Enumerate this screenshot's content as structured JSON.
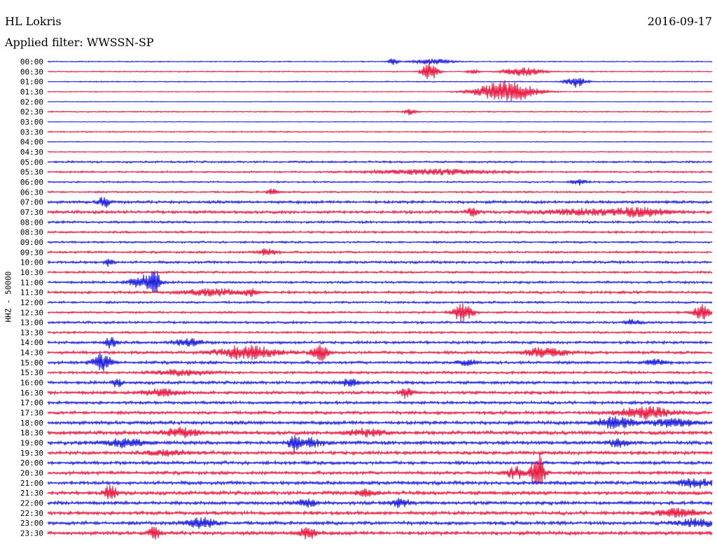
{
  "header": {
    "station": "HL Lokris",
    "date": "2016-09-17",
    "filter_label": "Applied filter: WWSSN-SP"
  },
  "chart_data": {
    "type": "line",
    "title": "HL Lokris",
    "subtitle": "Applied filter: WWSSN-SP",
    "ylabel": "HHZ - 50000",
    "xlabel": "",
    "grid": false,
    "legend": "none",
    "colors": {
      "even_hour": "#1a1adc",
      "odd_half_hour": "#e8163f"
    },
    "rows": [
      "00:00",
      "00:30",
      "01:00",
      "01:30",
      "02:00",
      "02:30",
      "03:00",
      "03:30",
      "04:00",
      "04:30",
      "05:00",
      "05:30",
      "06:00",
      "06:30",
      "07:00",
      "07:30",
      "08:00",
      "08:30",
      "09:00",
      "09:30",
      "10:00",
      "10:30",
      "11:00",
      "11:30",
      "12:00",
      "12:30",
      "13:00",
      "13:30",
      "14:00",
      "14:30",
      "15:00",
      "15:30",
      "16:00",
      "16:30",
      "17:00",
      "17:30",
      "18:00",
      "18:30",
      "19:00",
      "19:30",
      "20:00",
      "20:30",
      "21:00",
      "21:30",
      "22:00",
      "22:30",
      "23:00",
      "23:30"
    ],
    "noise_level": [
      0.6,
      0.6,
      0.6,
      0.5,
      0.4,
      0.7,
      0.4,
      0.7,
      0.5,
      0.6,
      1.1,
      1.0,
      0.9,
      1.0,
      1.6,
      1.6,
      1.3,
      1.2,
      1.1,
      1.2,
      1.4,
      1.2,
      1.3,
      1.4,
      1.2,
      1.2,
      1.3,
      1.2,
      1.5,
      1.6,
      1.6,
      1.4,
      1.7,
      1.7,
      1.6,
      1.7,
      2.0,
      2.0,
      2.0,
      1.9,
      1.8,
      1.8,
      1.9,
      2.0,
      1.9,
      1.9,
      1.9,
      2.0
    ],
    "events": [
      {
        "row": 0,
        "t": 0.52,
        "amp": 5,
        "dur": 0.005
      },
      {
        "row": 0,
        "t": 0.58,
        "amp": 4,
        "dur": 0.02
      },
      {
        "row": 1,
        "t": 0.575,
        "amp": 14,
        "dur": 0.008
      },
      {
        "row": 1,
        "t": 0.64,
        "amp": 3,
        "dur": 0.006
      },
      {
        "row": 1,
        "t": 0.715,
        "amp": 6,
        "dur": 0.02
      },
      {
        "row": 2,
        "t": 0.795,
        "amp": 8,
        "dur": 0.01
      },
      {
        "row": 3,
        "t": 0.69,
        "amp": 16,
        "dur": 0.03
      },
      {
        "row": 5,
        "t": 0.545,
        "amp": 4,
        "dur": 0.006
      },
      {
        "row": 11,
        "t": 0.58,
        "amp": 4,
        "dur": 0.06
      },
      {
        "row": 12,
        "t": 0.8,
        "amp": 4,
        "dur": 0.008
      },
      {
        "row": 13,
        "t": 0.338,
        "amp": 6,
        "dur": 0.005
      },
      {
        "row": 14,
        "t": 0.085,
        "amp": 8,
        "dur": 0.006
      },
      {
        "row": 15,
        "t": 0.64,
        "amp": 6,
        "dur": 0.006
      },
      {
        "row": 15,
        "t": 0.8,
        "amp": 4,
        "dur": 0.04
      },
      {
        "row": 15,
        "t": 0.89,
        "amp": 6,
        "dur": 0.03
      },
      {
        "row": 19,
        "t": 0.33,
        "amp": 5,
        "dur": 0.01
      },
      {
        "row": 20,
        "t": 0.093,
        "amp": 6,
        "dur": 0.005
      },
      {
        "row": 22,
        "t": 0.145,
        "amp": 10,
        "dur": 0.015
      },
      {
        "row": 22,
        "t": 0.162,
        "amp": 12,
        "dur": 0.005
      },
      {
        "row": 23,
        "t": 0.25,
        "amp": 5,
        "dur": 0.03
      },
      {
        "row": 23,
        "t": 0.305,
        "amp": 5,
        "dur": 0.006
      },
      {
        "row": 25,
        "t": 0.625,
        "amp": 14,
        "dur": 0.01
      },
      {
        "row": 25,
        "t": 0.985,
        "amp": 12,
        "dur": 0.008
      },
      {
        "row": 26,
        "t": 0.88,
        "amp": 4,
        "dur": 0.008
      },
      {
        "row": 28,
        "t": 0.095,
        "amp": 9,
        "dur": 0.006
      },
      {
        "row": 28,
        "t": 0.21,
        "amp": 5,
        "dur": 0.015
      },
      {
        "row": 29,
        "t": 0.3,
        "amp": 10,
        "dur": 0.03
      },
      {
        "row": 29,
        "t": 0.41,
        "amp": 12,
        "dur": 0.008
      },
      {
        "row": 29,
        "t": 0.75,
        "amp": 8,
        "dur": 0.02
      },
      {
        "row": 30,
        "t": 0.082,
        "amp": 12,
        "dur": 0.01
      },
      {
        "row": 30,
        "t": 0.63,
        "amp": 4,
        "dur": 0.01
      },
      {
        "row": 30,
        "t": 0.915,
        "amp": 4,
        "dur": 0.01
      },
      {
        "row": 31,
        "t": 0.2,
        "amp": 4,
        "dur": 0.03
      },
      {
        "row": 32,
        "t": 0.105,
        "amp": 6,
        "dur": 0.005
      },
      {
        "row": 32,
        "t": 0.455,
        "amp": 5,
        "dur": 0.01
      },
      {
        "row": 33,
        "t": 0.54,
        "amp": 8,
        "dur": 0.006
      },
      {
        "row": 33,
        "t": 0.17,
        "amp": 5,
        "dur": 0.02
      },
      {
        "row": 35,
        "t": 0.9,
        "amp": 8,
        "dur": 0.03
      },
      {
        "row": 36,
        "t": 0.855,
        "amp": 8,
        "dur": 0.02
      },
      {
        "row": 36,
        "t": 0.94,
        "amp": 6,
        "dur": 0.02
      },
      {
        "row": 37,
        "t": 0.2,
        "amp": 6,
        "dur": 0.02
      },
      {
        "row": 37,
        "t": 0.48,
        "amp": 5,
        "dur": 0.02
      },
      {
        "row": 38,
        "t": 0.115,
        "amp": 6,
        "dur": 0.02
      },
      {
        "row": 38,
        "t": 0.37,
        "amp": 12,
        "dur": 0.005
      },
      {
        "row": 38,
        "t": 0.395,
        "amp": 6,
        "dur": 0.015
      },
      {
        "row": 38,
        "t": 0.86,
        "amp": 6,
        "dur": 0.01
      },
      {
        "row": 39,
        "t": 0.18,
        "amp": 4,
        "dur": 0.02
      },
      {
        "row": 41,
        "t": 0.705,
        "amp": 8,
        "dur": 0.01
      },
      {
        "row": 41,
        "t": 0.735,
        "amp": 14,
        "dur": 0.006
      },
      {
        "row": 41,
        "t": 0.74,
        "amp": 20,
        "dur": 0.006
      },
      {
        "row": 42,
        "t": 0.975,
        "amp": 6,
        "dur": 0.02
      },
      {
        "row": 43,
        "t": 0.095,
        "amp": 12,
        "dur": 0.006
      },
      {
        "row": 43,
        "t": 0.48,
        "amp": 5,
        "dur": 0.01
      },
      {
        "row": 44,
        "t": 0.39,
        "amp": 6,
        "dur": 0.01
      },
      {
        "row": 44,
        "t": 0.53,
        "amp": 6,
        "dur": 0.01
      },
      {
        "row": 45,
        "t": 0.95,
        "amp": 6,
        "dur": 0.02
      },
      {
        "row": 46,
        "t": 0.23,
        "amp": 8,
        "dur": 0.015
      },
      {
        "row": 46,
        "t": 0.975,
        "amp": 6,
        "dur": 0.02
      },
      {
        "row": 47,
        "t": 0.16,
        "amp": 9,
        "dur": 0.006
      },
      {
        "row": 47,
        "t": 0.39,
        "amp": 8,
        "dur": 0.01
      }
    ]
  }
}
